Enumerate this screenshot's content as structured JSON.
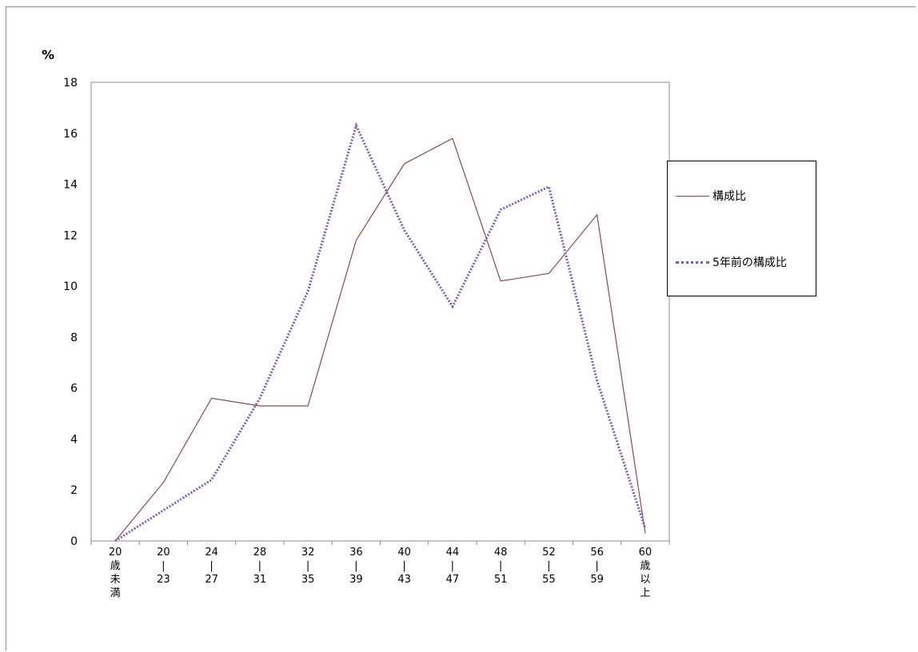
{
  "chart_data": {
    "type": "line",
    "unit_label": "%",
    "categories": [
      [
        "20",
        "歳",
        "未",
        "満"
      ],
      [
        "20",
        "|",
        "23"
      ],
      [
        "24",
        "|",
        "27"
      ],
      [
        "28",
        "|",
        "31"
      ],
      [
        "32",
        "|",
        "35"
      ],
      [
        "36",
        "|",
        "39"
      ],
      [
        "40",
        "|",
        "43"
      ],
      [
        "44",
        "|",
        "47"
      ],
      [
        "48",
        "|",
        "51"
      ],
      [
        "52",
        "|",
        "55"
      ],
      [
        "56",
        "|",
        "59"
      ],
      [
        "60",
        "歳",
        "以",
        "上"
      ]
    ],
    "ylim": [
      0,
      18
    ],
    "yticks": [
      "0",
      "2",
      "4",
      "6",
      "8",
      "10",
      "12",
      "14",
      "16",
      "18"
    ],
    "series": [
      {
        "name": "構成比",
        "color": "#8b4a4a",
        "style": "solid",
        "values": [
          0,
          2.3,
          5.6,
          5.3,
          5.3,
          11.8,
          14.8,
          15.8,
          10.2,
          10.5,
          12.8,
          0.3
        ]
      },
      {
        "name": "5年前の構成比",
        "color": "#7b5cb8",
        "style": "dotted",
        "values": [
          0,
          1.2,
          2.4,
          5.6,
          9.8,
          16.3,
          12.2,
          9.2,
          13.0,
          13.9,
          6.3,
          0.5
        ]
      }
    ],
    "legend_position": "right",
    "grid": false
  }
}
